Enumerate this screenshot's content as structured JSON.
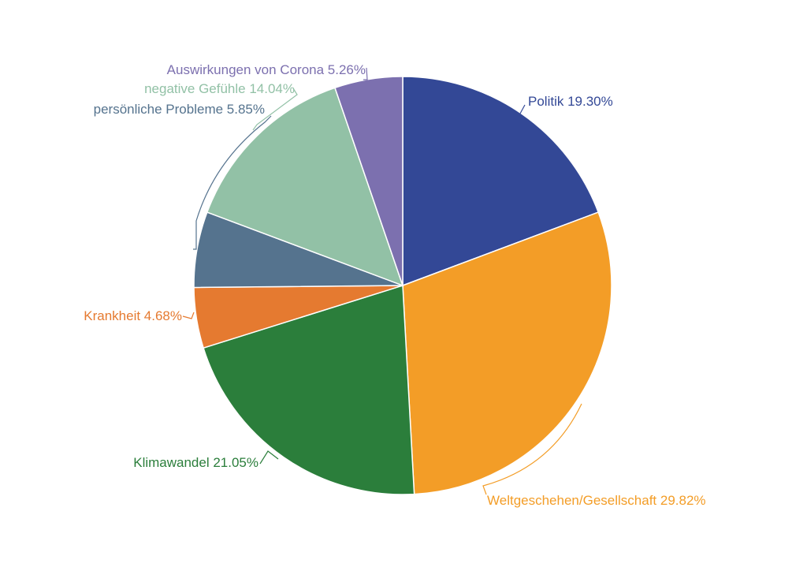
{
  "chart_data": {
    "type": "pie",
    "title": "",
    "slices": [
      {
        "label": "Politik",
        "value": 19.3,
        "display": "Politik 19.30%",
        "color": "#334896"
      },
      {
        "label": "Weltgeschehen/Gesellschaft",
        "value": 29.82,
        "display": "Weltgeschehen/Gesellschaft 29.82%",
        "color": "#F39D27"
      },
      {
        "label": "Klimawandel",
        "value": 21.05,
        "display": "Klimawandel 21.05%",
        "color": "#2B7E3B"
      },
      {
        "label": "Krankheit",
        "value": 4.68,
        "display": "Krankheit 4.68%",
        "color": "#E57A30"
      },
      {
        "label": "persönliche Probleme",
        "value": 5.85,
        "display": "persönliche Probleme 5.85%",
        "color": "#55738E"
      },
      {
        "label": "negative Gefühle",
        "value": 14.04,
        "display": "negative Gefühle 14.04%",
        "color": "#92C1A6"
      },
      {
        "label": "Auswirkungen von Corona",
        "value": 5.26,
        "display": "Auswirkungen von Corona 5.26%",
        "color": "#7C70AF"
      }
    ],
    "start_angle": "12 o'clock",
    "direction": "clockwise",
    "legend": "none"
  }
}
